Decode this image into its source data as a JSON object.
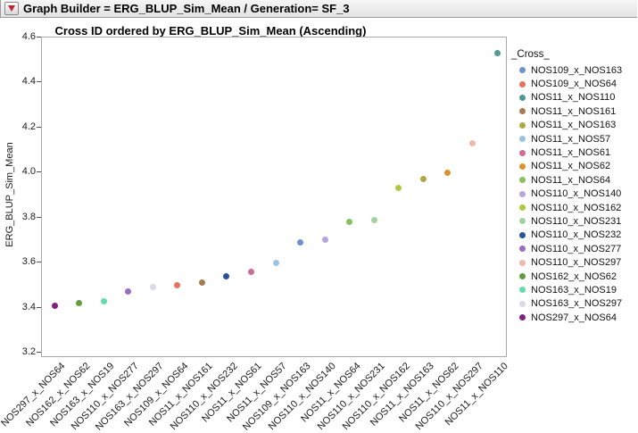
{
  "window": {
    "title": "Graph Builder = ERG_BLUP_Sim_Mean / Generation= SF_3",
    "menu_icon": "red-triangle-down"
  },
  "chart_data": {
    "type": "scatter",
    "title": "Cross ID ordered by ERG_BLUP_Sim_Mean (Ascending)",
    "xlabel": "",
    "ylabel": "ERG_BLUP_Sim_Mean",
    "ylim": [
      3.2,
      4.6
    ],
    "ytick_step": 0.2,
    "yticks": [
      "4.6",
      "4.4",
      "4.2",
      "4.0",
      "3.8",
      "3.6",
      "3.4",
      "3.2"
    ],
    "grid": false,
    "legend_position": "right",
    "legend_title": "_Cross_",
    "points": [
      {
        "category": "NOS297_x_NOS64",
        "value": 3.41,
        "color": "#7F2182"
      },
      {
        "category": "NOS162_x_NOS62",
        "value": 3.42,
        "color": "#639E3E"
      },
      {
        "category": "NOS163_x_NOS19",
        "value": 3.43,
        "color": "#65DBA9"
      },
      {
        "category": "NOS110_x_NOS277",
        "value": 3.47,
        "color": "#9C6CC0"
      },
      {
        "category": "NOS163_x_NOS297",
        "value": 3.49,
        "color": "#D9D9EA"
      },
      {
        "category": "NOS109_x_NOS64",
        "value": 3.5,
        "color": "#E5735F"
      },
      {
        "category": "NOS11_x_NOS161",
        "value": 3.51,
        "color": "#A87A50"
      },
      {
        "category": "NOS110_x_NOS232",
        "value": 3.54,
        "color": "#29539F"
      },
      {
        "category": "NOS11_x_NOS61",
        "value": 3.56,
        "color": "#CE6B97"
      },
      {
        "category": "NOS11_x_NOS57",
        "value": 3.6,
        "color": "#9CC3E5"
      },
      {
        "category": "NOS109_x_NOS163",
        "value": 3.69,
        "color": "#7191CE"
      },
      {
        "category": "NOS110_x_NOS140",
        "value": 3.7,
        "color": "#B4A6DF"
      },
      {
        "category": "NOS11_x_NOS64",
        "value": 3.78,
        "color": "#87C05F"
      },
      {
        "category": "NOS110_x_NOS231",
        "value": 3.79,
        "color": "#A3D1A4"
      },
      {
        "category": "NOS110_x_NOS162",
        "value": 3.93,
        "color": "#ACCB3E"
      },
      {
        "category": "NOS11_x_NOS163",
        "value": 3.97,
        "color": "#AFA741"
      },
      {
        "category": "NOS11_x_NOS62",
        "value": 4.0,
        "color": "#D9922F"
      },
      {
        "category": "NOS110_x_NOS297",
        "value": 4.13,
        "color": "#F0B8A8"
      },
      {
        "category": "NOS11_x_NOS110",
        "value": 4.53,
        "color": "#509A96"
      }
    ],
    "legend": [
      {
        "label": "NOS109_x_NOS163",
        "color": "#7191CE"
      },
      {
        "label": "NOS109_x_NOS64",
        "color": "#E5735F"
      },
      {
        "label": "NOS11_x_NOS110",
        "color": "#509A96"
      },
      {
        "label": "NOS11_x_NOS161",
        "color": "#A87A50"
      },
      {
        "label": "NOS11_x_NOS163",
        "color": "#AFA741"
      },
      {
        "label": "NOS11_x_NOS57",
        "color": "#9CC3E5"
      },
      {
        "label": "NOS11_x_NOS61",
        "color": "#CE6B97"
      },
      {
        "label": "NOS11_x_NOS62",
        "color": "#D9922F"
      },
      {
        "label": "NOS11_x_NOS64",
        "color": "#87C05F"
      },
      {
        "label": "NOS110_x_NOS140",
        "color": "#B4A6DF"
      },
      {
        "label": "NOS110_x_NOS162",
        "color": "#ACCB3E"
      },
      {
        "label": "NOS110_x_NOS231",
        "color": "#A3D1A4"
      },
      {
        "label": "NOS110_x_NOS232",
        "color": "#29539F"
      },
      {
        "label": "NOS110_x_NOS277",
        "color": "#9C6CC0"
      },
      {
        "label": "NOS110_x_NOS297",
        "color": "#F0B8A8"
      },
      {
        "label": "NOS162_x_NOS62",
        "color": "#639E3E"
      },
      {
        "label": "NOS163_x_NOS19",
        "color": "#65DBA9"
      },
      {
        "label": "NOS163_x_NOS297",
        "color": "#D9D9EA"
      },
      {
        "label": "NOS297_x_NOS64",
        "color": "#7F2182"
      }
    ]
  }
}
